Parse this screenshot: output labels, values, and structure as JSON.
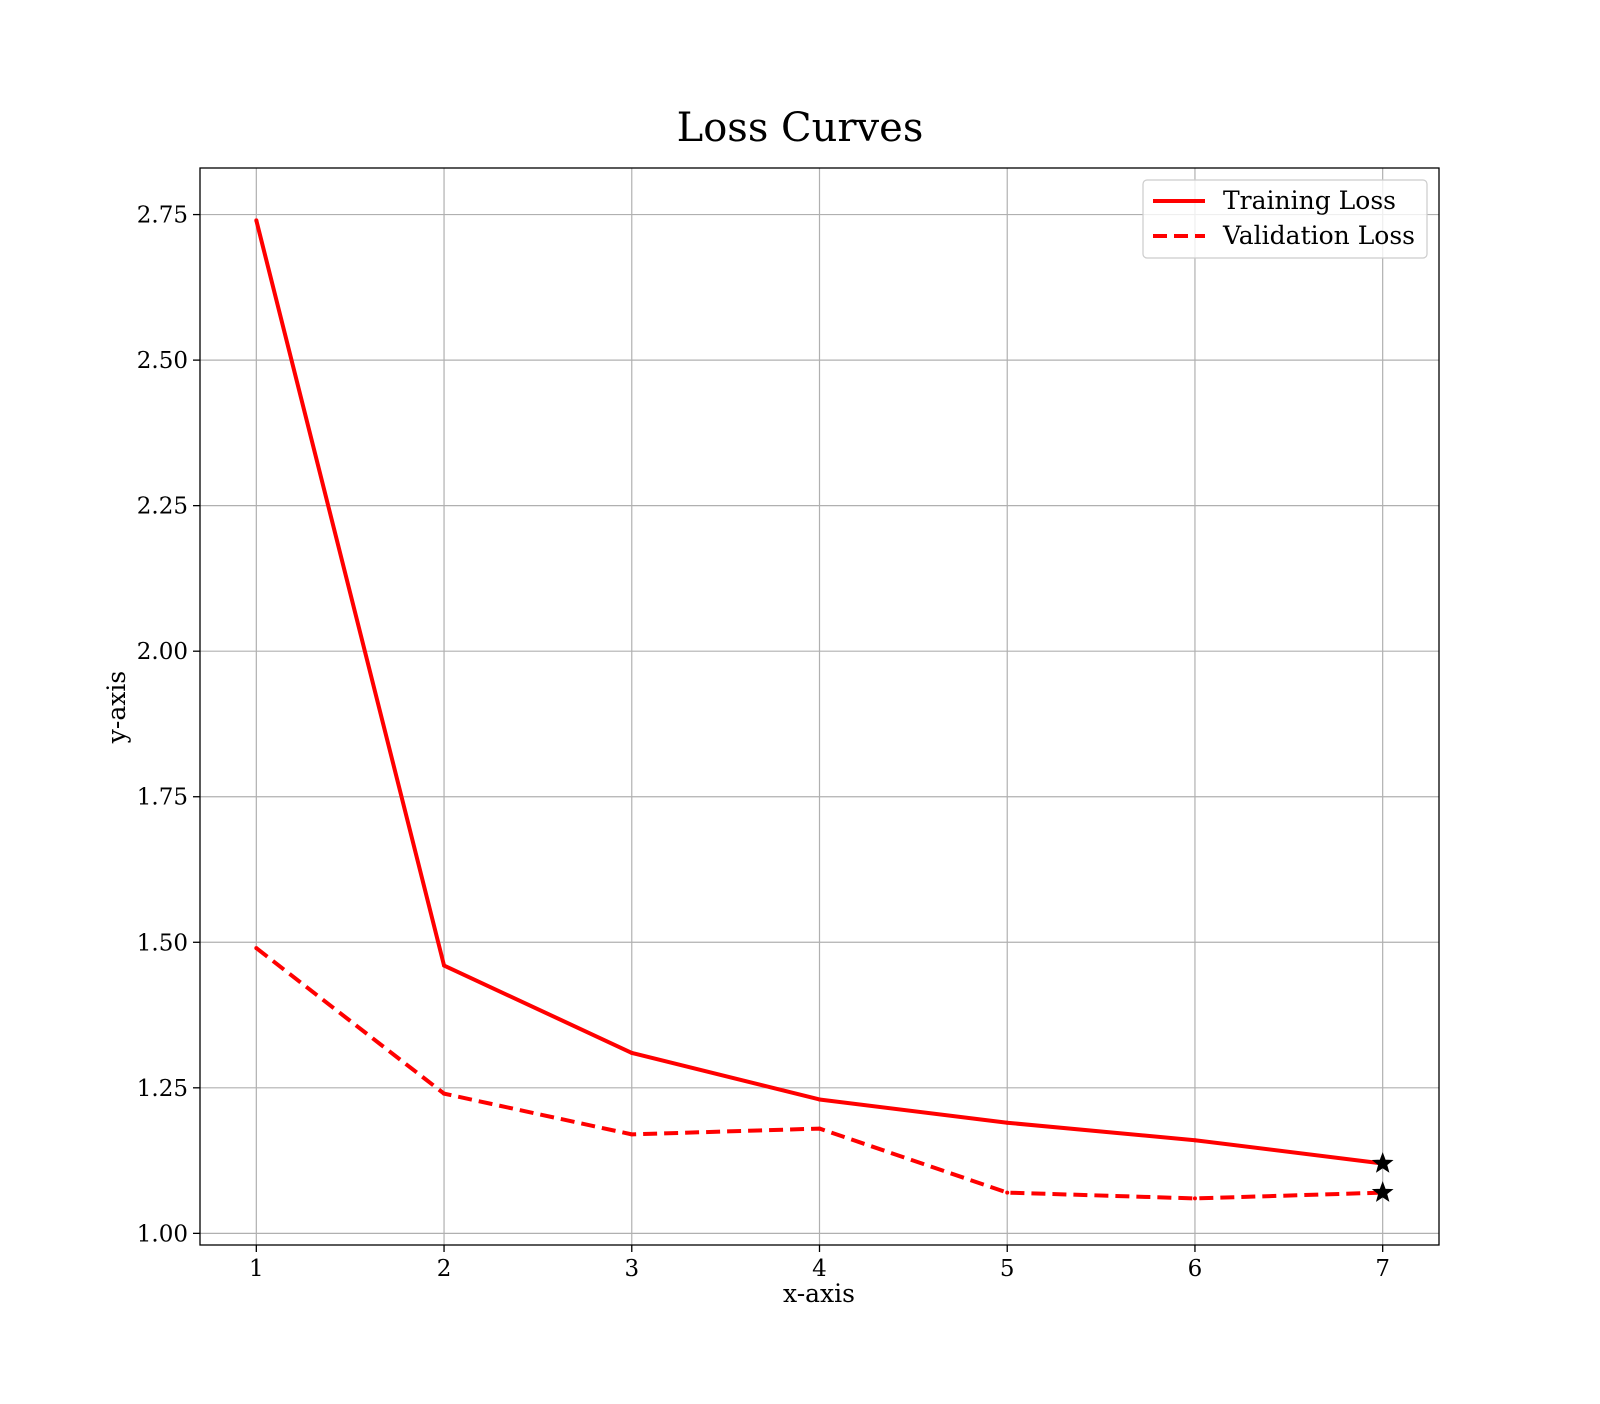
{
  "chart_data": {
    "type": "line",
    "title": "Loss Curves",
    "xlabel": "x-axis",
    "ylabel": "y-axis",
    "x": [
      1,
      2,
      3,
      4,
      5,
      6,
      7
    ],
    "xticks": [
      "1",
      "2",
      "3",
      "4",
      "5",
      "6",
      "7"
    ],
    "yticks": [
      "1.00",
      "1.25",
      "1.50",
      "1.75",
      "2.00",
      "2.25",
      "2.50",
      "2.75"
    ],
    "xlim": [
      0.7,
      7.3
    ],
    "ylim": [
      0.98,
      2.83
    ],
    "grid": true,
    "legend_position": "top-right",
    "series": [
      {
        "name": "Training Loss",
        "values": [
          2.74,
          1.46,
          1.31,
          1.23,
          1.19,
          1.16,
          1.12
        ],
        "color": "#ff0000",
        "style": "solid",
        "end_marker": "star"
      },
      {
        "name": "Validation Loss",
        "values": [
          1.49,
          1.24,
          1.17,
          1.18,
          1.07,
          1.06,
          1.07
        ],
        "color": "#ff0000",
        "style": "dashed",
        "end_marker": "star"
      }
    ]
  }
}
